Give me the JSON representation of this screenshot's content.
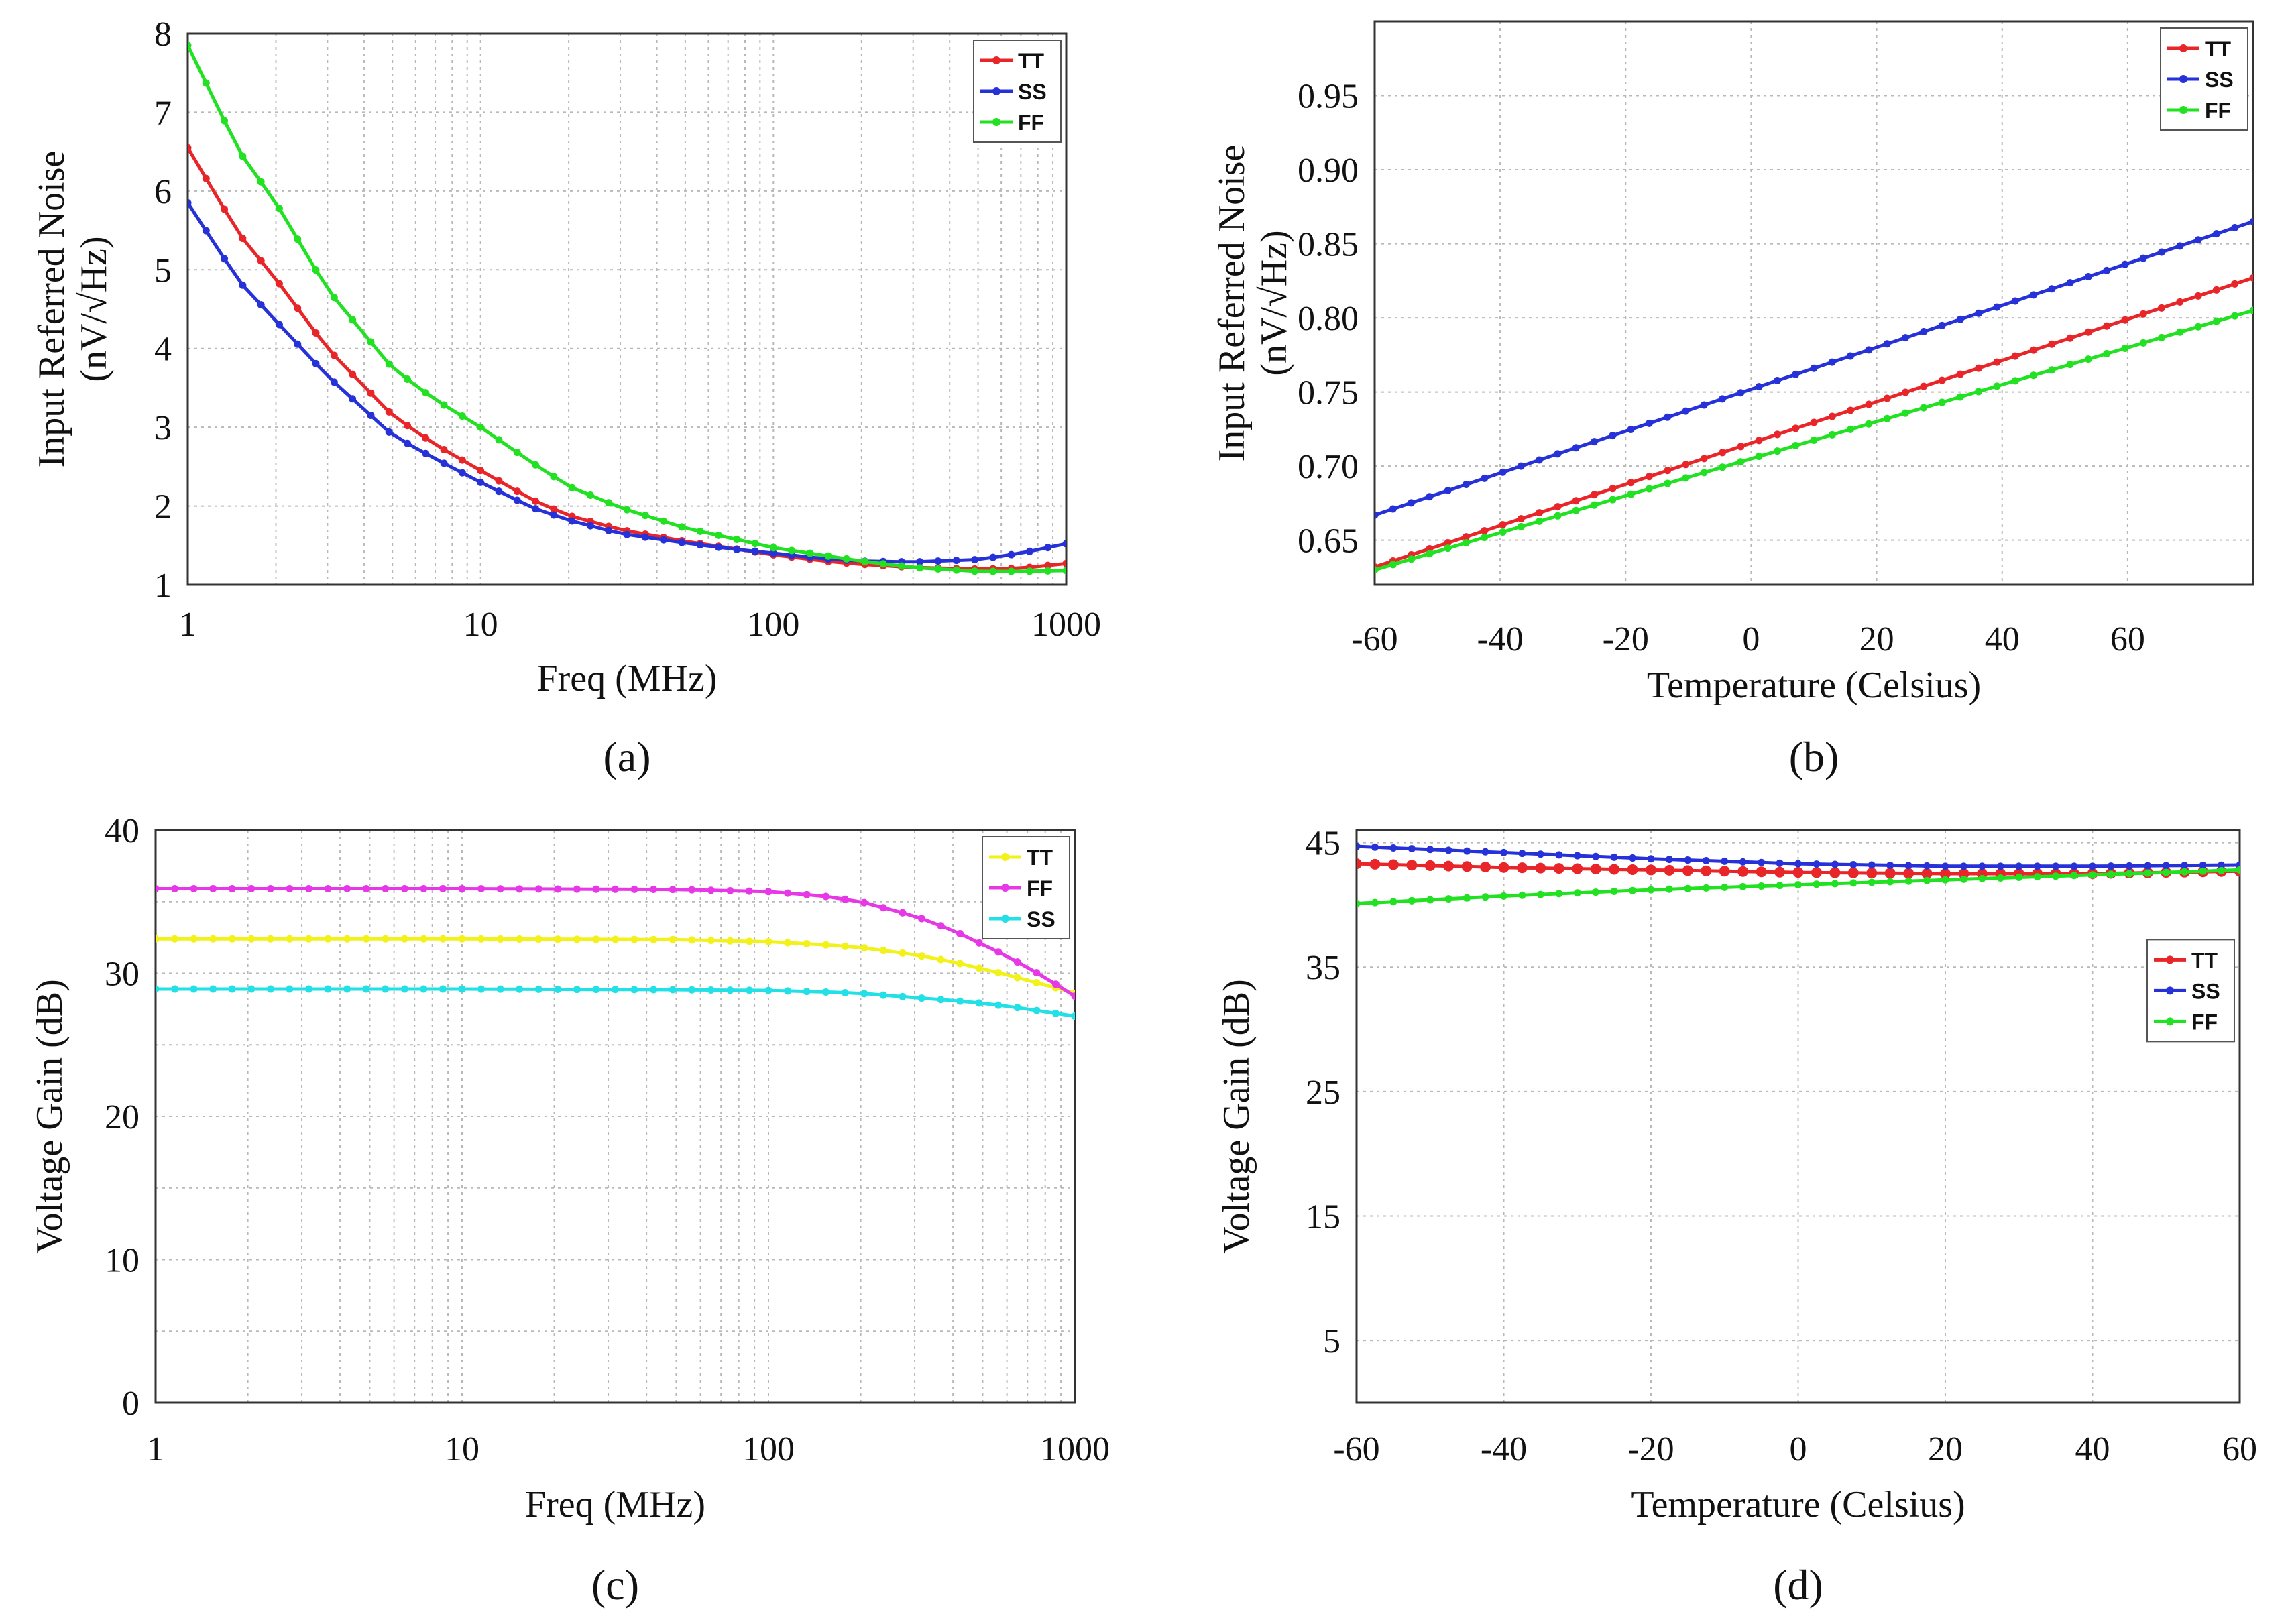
{
  "chart_data": [
    {
      "id": "a",
      "type": "line",
      "panel_label": "(a)",
      "xlabel": "Freq (MHz)",
      "ylabel": "Input Referred Noise",
      "ylabel2": "(nV/√Hz)",
      "xscale": "log",
      "xlim": [
        1,
        1000
      ],
      "ylim": [
        1,
        8
      ],
      "xticks": [
        1,
        10,
        100,
        1000
      ],
      "xtick_labels": [
        "1",
        "10",
        "100",
        "1000"
      ],
      "yticks": [
        1,
        2,
        3,
        4,
        5,
        6,
        7,
        8
      ],
      "ytick_labels": [
        "1",
        "2",
        "3",
        "4",
        "5",
        "6",
        "7",
        "8"
      ],
      "grid": true,
      "legend_position": "top-right",
      "series": [
        {
          "name": "TT",
          "color": "#e8262a",
          "x": [
            1,
            1.5,
            2,
            3,
            5,
            7,
            10,
            15,
            20,
            30,
            50,
            70,
            100,
            150,
            200,
            300,
            500,
            700,
            1000
          ],
          "y": [
            6.55,
            5.45,
            4.88,
            4.0,
            3.15,
            2.78,
            2.45,
            2.08,
            1.88,
            1.7,
            1.55,
            1.47,
            1.38,
            1.3,
            1.26,
            1.22,
            1.2,
            1.21,
            1.27
          ]
        },
        {
          "name": "SS",
          "color": "#2632d8",
          "x": [
            1,
            1.5,
            2,
            3,
            5,
            7,
            10,
            15,
            20,
            30,
            50,
            70,
            100,
            150,
            200,
            300,
            500,
            700,
            1000
          ],
          "y": [
            5.85,
            4.85,
            4.35,
            3.65,
            2.9,
            2.6,
            2.3,
            1.98,
            1.82,
            1.65,
            1.53,
            1.46,
            1.4,
            1.33,
            1.3,
            1.29,
            1.32,
            1.4,
            1.52
          ]
        },
        {
          "name": "FF",
          "color": "#22e022",
          "x": [
            1,
            1.5,
            2,
            3,
            5,
            7,
            10,
            15,
            20,
            30,
            50,
            70,
            100,
            150,
            200,
            300,
            500,
            700,
            1000
          ],
          "y": [
            7.85,
            6.5,
            5.85,
            4.75,
            3.75,
            3.35,
            3.0,
            2.55,
            2.25,
            1.98,
            1.72,
            1.6,
            1.47,
            1.37,
            1.3,
            1.22,
            1.17,
            1.17,
            1.18
          ]
        }
      ]
    },
    {
      "id": "b",
      "type": "line",
      "panel_label": "(b)",
      "xlabel": "Temperature (Celsius)",
      "ylabel": "Input Referred Noise",
      "ylabel2": "(nV/√Hz)",
      "xscale": "linear",
      "xlim": [
        -60,
        80
      ],
      "ylim": [
        0.62,
        1.0
      ],
      "xticks": [
        -60,
        -40,
        -20,
        0,
        20,
        40,
        60
      ],
      "xtick_labels": [
        "-60",
        "-40",
        "-20",
        "0",
        "20",
        "40",
        "60"
      ],
      "yticks": [
        0.65,
        0.7,
        0.75,
        0.8,
        0.85,
        0.9,
        0.95
      ],
      "ytick_labels": [
        "0.65",
        "0.70",
        "0.75",
        "0.80",
        "0.85",
        "0.90",
        "0.95"
      ],
      "grid": true,
      "legend_position": "top-right",
      "series": [
        {
          "name": "TT",
          "color": "#e8262a",
          "x": [
            -60,
            80
          ],
          "y": [
            0.632,
            0.827
          ]
        },
        {
          "name": "SS",
          "color": "#2632d8",
          "x": [
            -60,
            80
          ],
          "y": [
            0.667,
            0.865
          ]
        },
        {
          "name": "FF",
          "color": "#22e022",
          "x": [
            -60,
            80
          ],
          "y": [
            0.63,
            0.805
          ]
        }
      ]
    },
    {
      "id": "c",
      "type": "line",
      "panel_label": "(c)",
      "xlabel": "Freq (MHz)",
      "ylabel": "Voltage Gain (dB)",
      "xscale": "log",
      "xlim": [
        1,
        1000
      ],
      "ylim": [
        0,
        40
      ],
      "xticks": [
        1,
        10,
        100,
        1000
      ],
      "xtick_labels": [
        "1",
        "10",
        "100",
        "1000"
      ],
      "yticks": [
        0,
        10,
        20,
        30,
        40
      ],
      "ytick_labels": [
        "0",
        "10",
        "20",
        "30",
        "40"
      ],
      "grid": true,
      "legend_position": "top-right",
      "series": [
        {
          "name": "TT",
          "color": "#f2f21a",
          "x": [
            1,
            10,
            50,
            100,
            150,
            200,
            300,
            400,
            500,
            600,
            700,
            800,
            1000
          ],
          "y": [
            32.4,
            32.4,
            32.35,
            32.2,
            32.0,
            31.8,
            31.3,
            30.8,
            30.3,
            29.9,
            29.5,
            29.2,
            28.6
          ]
        },
        {
          "name": "FF",
          "color": "#e638e6",
          "x": [
            1,
            10,
            50,
            100,
            150,
            200,
            300,
            400,
            500,
            600,
            700,
            800,
            1000
          ],
          "y": [
            35.9,
            35.9,
            35.85,
            35.7,
            35.4,
            35.0,
            34.0,
            33.0,
            32.0,
            31.2,
            30.4,
            29.7,
            28.4
          ]
        },
        {
          "name": "SS",
          "color": "#22e0e6",
          "x": [
            1,
            10,
            50,
            100,
            150,
            200,
            300,
            400,
            500,
            600,
            700,
            800,
            1000
          ],
          "y": [
            28.9,
            28.9,
            28.85,
            28.8,
            28.7,
            28.6,
            28.3,
            28.1,
            27.9,
            27.7,
            27.5,
            27.3,
            27.0
          ]
        }
      ]
    },
    {
      "id": "d",
      "type": "line",
      "panel_label": "(d)",
      "xlabel": "Temperature (Celsius)",
      "ylabel": "Voltage Gain (dB)",
      "xscale": "linear",
      "xlim": [
        -60,
        60
      ],
      "ylim": [
        0,
        46
      ],
      "xticks": [
        -60,
        -40,
        -20,
        0,
        20,
        40,
        60
      ],
      "xtick_labels": [
        "-60",
        "-40",
        "-20",
        "0",
        "20",
        "40",
        "60"
      ],
      "yticks": [
        5,
        15,
        25,
        35,
        45
      ],
      "ytick_labels": [
        "5",
        "15",
        "25",
        "35",
        "45"
      ],
      "grid": true,
      "legend_position": "upper-right",
      "series": [
        {
          "name": "TT",
          "color": "#e8262a",
          "x": [
            -60,
            -40,
            -20,
            0,
            20,
            40,
            60
          ],
          "y": [
            43.3,
            43.0,
            42.8,
            42.6,
            42.5,
            42.5,
            42.7
          ]
        },
        {
          "name": "SS",
          "color": "#2632d8",
          "x": [
            -60,
            -40,
            -20,
            0,
            20,
            40,
            60
          ],
          "y": [
            44.7,
            44.2,
            43.7,
            43.3,
            43.1,
            43.1,
            43.2
          ]
        },
        {
          "name": "FF",
          "color": "#22e022",
          "x": [
            -60,
            -40,
            -20,
            0,
            20,
            40,
            60
          ],
          "y": [
            40.1,
            40.7,
            41.2,
            41.6,
            42.0,
            42.4,
            42.8
          ]
        }
      ]
    }
  ]
}
